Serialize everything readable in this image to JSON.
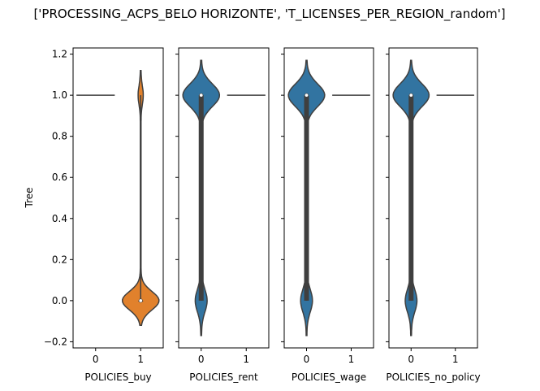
{
  "chart_data": {
    "type": "violin",
    "title": "['PROCESSING_ACPS_BELO HORIZONTE', 'T_LICENSES_PER_REGION_random']",
    "ylabel": "Tree",
    "ylim": [
      -0.23,
      1.23
    ],
    "yticks": [
      "−0.2",
      "0.0",
      "0.2",
      "0.4",
      "0.6",
      "0.8",
      "1.0",
      "1.2"
    ],
    "y_values": [
      -0.2,
      0.0,
      0.2,
      0.4,
      0.6,
      0.8,
      1.0,
      1.2
    ],
    "xticks": [
      "0",
      "1"
    ],
    "colors": {
      "blue": "#3274a1",
      "orange": "#e1812c",
      "edge": "#3f3f3f"
    },
    "panels": [
      {
        "xlabel": "POLICIES_buy",
        "violins": [
          {
            "category": "0",
            "kind": "point",
            "value": 1.0,
            "color": "#e1812c"
          },
          {
            "category": "1",
            "kind": "violin",
            "color": "#e1812c",
            "median": 0.0,
            "q1": 0.0,
            "q3": 0.0,
            "min": 0.0,
            "max": 1.0,
            "extent": [
              -0.12,
              1.12
            ],
            "modes": [
              {
                "y": 1.0,
                "width": 0.1,
                "spread": 0.045
              },
              {
                "y": 0.0,
                "width": 0.8,
                "spread": 0.045
              }
            ]
          }
        ]
      },
      {
        "xlabel": "POLICIES_rent",
        "violins": [
          {
            "category": "0",
            "kind": "violin",
            "color": "#3274a1",
            "median": 1.0,
            "q1": 0.0,
            "q3": 1.0,
            "min": 0.0,
            "max": 1.0,
            "extent": [
              -0.17,
              1.17
            ],
            "modes": [
              {
                "y": 1.0,
                "width": 0.8,
                "spread": 0.055
              },
              {
                "y": 0.0,
                "width": 0.25,
                "spread": 0.055
              }
            ]
          },
          {
            "category": "1",
            "kind": "point",
            "value": 1.0,
            "color": "#3274a1"
          }
        ]
      },
      {
        "xlabel": "POLICIES_wage",
        "violins": [
          {
            "category": "0",
            "kind": "violin",
            "color": "#3274a1",
            "median": 1.0,
            "q1": 0.0,
            "q3": 1.0,
            "min": 0.0,
            "max": 1.0,
            "extent": [
              -0.17,
              1.17
            ],
            "modes": [
              {
                "y": 1.0,
                "width": 0.8,
                "spread": 0.055
              },
              {
                "y": 0.0,
                "width": 0.25,
                "spread": 0.055
              }
            ]
          },
          {
            "category": "1",
            "kind": "point",
            "value": 1.0,
            "color": "#3274a1"
          }
        ]
      },
      {
        "xlabel": "POLICIES_no_policy",
        "violins": [
          {
            "category": "0",
            "kind": "violin",
            "color": "#3274a1",
            "median": 1.0,
            "q1": 0.0,
            "q3": 1.0,
            "min": 0.0,
            "max": 1.0,
            "extent": [
              -0.17,
              1.17
            ],
            "modes": [
              {
                "y": 1.0,
                "width": 0.8,
                "spread": 0.055
              },
              {
                "y": 0.0,
                "width": 0.25,
                "spread": 0.055
              }
            ]
          },
          {
            "category": "1",
            "kind": "point",
            "value": 1.0,
            "color": "#3274a1"
          }
        ]
      }
    ]
  }
}
